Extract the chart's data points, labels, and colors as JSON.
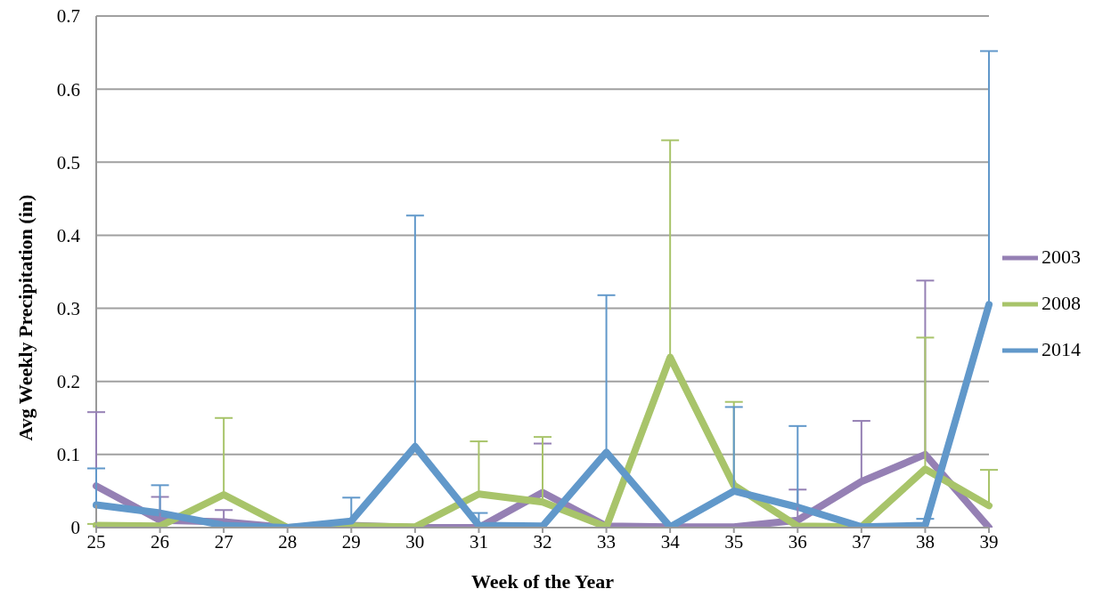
{
  "chart_data": {
    "type": "line",
    "xlabel": "Week of the Year",
    "ylabel": "Avg Weekly Precipitation (in)",
    "categories": [
      "25",
      "26",
      "27",
      "28",
      "29",
      "30",
      "31",
      "32",
      "33",
      "34",
      "35",
      "36",
      "37",
      "38",
      "39"
    ],
    "ylim": [
      0,
      0.7
    ],
    "yticks": [
      0,
      0.1,
      0.2,
      0.3,
      0.4,
      0.5,
      0.6,
      0.7
    ],
    "grid": "y",
    "legend": "right",
    "marker": "none",
    "line_style": "solid",
    "series": [
      {
        "name": "2003",
        "color": "#9580b4",
        "values": [
          0.057,
          0.01,
          0.008,
          0,
          0.003,
          0,
          0,
          0.048,
          0.002,
          0.001,
          0.001,
          0.01,
          0.063,
          0.1,
          0
        ],
        "errors": [
          [
            0.057,
            0.158
          ],
          [
            0.01,
            0.042
          ],
          [
            0.008,
            0.024
          ],
          null,
          null,
          null,
          null,
          [
            0.048,
            0.115
          ],
          null,
          null,
          null,
          [
            0.01,
            0.052
          ],
          [
            0.063,
            0.146
          ],
          [
            0.1,
            0.338
          ],
          null
        ]
      },
      {
        "name": "2008",
        "color": "#a8c46a",
        "values": [
          0.003,
          0.002,
          0.045,
          0,
          0.002,
          0.001,
          0.046,
          0.035,
          0.001,
          0.233,
          0.058,
          0.002,
          0.001,
          0.08,
          0.03
        ],
        "errors": [
          [
            0.003,
            0.005
          ],
          null,
          [
            0.045,
            0.15
          ],
          null,
          null,
          null,
          [
            0.046,
            0.118
          ],
          [
            0.035,
            0.124
          ],
          null,
          [
            0.233,
            0.53
          ],
          [
            0.058,
            0.172
          ],
          null,
          null,
          [
            0.08,
            0.26
          ],
          [
            0.03,
            0.079
          ]
        ]
      },
      {
        "name": "2014",
        "color": "#6198ca",
        "values": [
          0.031,
          0.02,
          0.003,
          0,
          0.009,
          0.111,
          0.003,
          0.002,
          0.103,
          0.001,
          0.05,
          0.028,
          0.001,
          0.003,
          0.305
        ],
        "errors": [
          [
            0.031,
            0.081
          ],
          [
            0.02,
            0.058
          ],
          null,
          null,
          [
            0.009,
            0.041
          ],
          [
            0.111,
            0.427
          ],
          [
            0.003,
            0.02
          ],
          null,
          [
            0.103,
            0.318
          ],
          null,
          [
            0.05,
            0.165
          ],
          [
            0.028,
            0.139
          ],
          null,
          [
            0.003,
            0.012
          ],
          [
            0.305,
            0.652
          ]
        ]
      }
    ]
  }
}
